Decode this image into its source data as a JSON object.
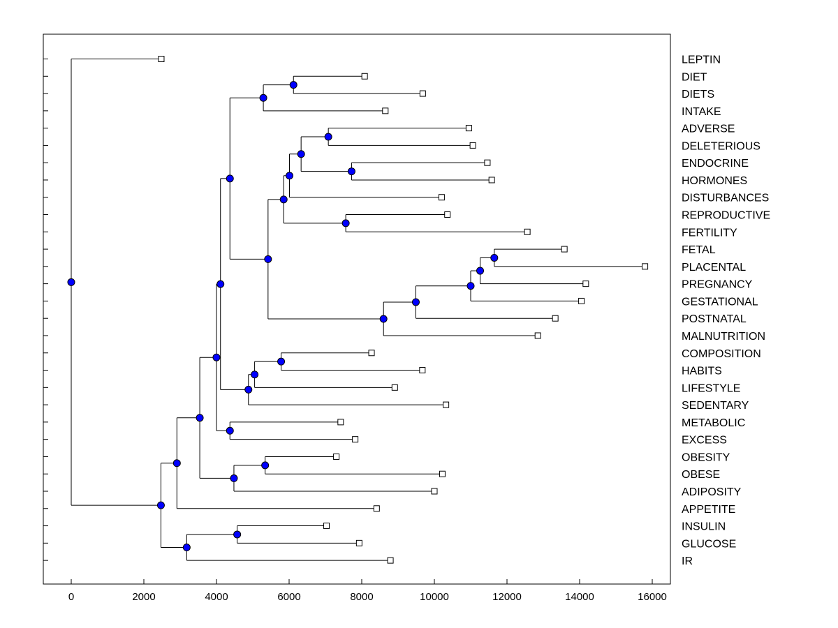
{
  "chart_data": {
    "type": "dendrogram",
    "orientation": "horizontal",
    "xlim": [
      -800,
      16500
    ],
    "x_ticks": [
      0,
      2000,
      4000,
      6000,
      8000,
      10000,
      12000,
      14000,
      16000
    ],
    "x_tick_labels": [
      "0",
      "2000",
      "4000",
      "6000",
      "8000",
      "10000",
      "12000",
      "14000",
      "16000"
    ],
    "leaves": [
      {
        "label": "LEPTIN",
        "x": 2480
      },
      {
        "label": "DIET",
        "x": 8080
      },
      {
        "label": "DIETS",
        "x": 9680
      },
      {
        "label": "INTAKE",
        "x": 8650
      },
      {
        "label": "ADVERSE",
        "x": 10950
      },
      {
        "label": "DELETERIOUS",
        "x": 11060
      },
      {
        "label": "ENDOCRINE",
        "x": 11460
      },
      {
        "label": "HORMONES",
        "x": 11580
      },
      {
        "label": "DISTURBANCES",
        "x": 10200
      },
      {
        "label": "REPRODUCTIVE",
        "x": 10360
      },
      {
        "label": "FERTILITY",
        "x": 12560
      },
      {
        "label": "FETAL",
        "x": 13580
      },
      {
        "label": "PLACENTAL",
        "x": 15800
      },
      {
        "label": "PREGNANCY",
        "x": 14170
      },
      {
        "label": "GESTATIONAL",
        "x": 14050
      },
      {
        "label": "POSTNATAL",
        "x": 13330
      },
      {
        "label": "MALNUTRITION",
        "x": 12850
      },
      {
        "label": "COMPOSITION",
        "x": 8270
      },
      {
        "label": "HABITS",
        "x": 9670
      },
      {
        "label": "LIFESTYLE",
        "x": 8910
      },
      {
        "label": "SEDENTARY",
        "x": 10320
      },
      {
        "label": "METABOLIC",
        "x": 7420
      },
      {
        "label": "EXCESS",
        "x": 7820
      },
      {
        "label": "OBESITY",
        "x": 7300
      },
      {
        "label": "OBESE",
        "x": 10220
      },
      {
        "label": "ADIPOSITY",
        "x": 10000
      },
      {
        "label": "APPETITE",
        "x": 8410
      },
      {
        "label": "INSULIN",
        "x": 7030
      },
      {
        "label": "GLUCOSE",
        "x": 7930
      },
      {
        "label": "IR",
        "x": 8790
      }
    ],
    "nodes": [
      {
        "id": "n_root",
        "x": 0,
        "children": [
          "L0",
          "n_B"
        ]
      },
      {
        "id": "n_B",
        "x": 2470,
        "children": [
          "n_C",
          "n_ig"
        ]
      },
      {
        "id": "n_ig",
        "x": 3180,
        "children": [
          "n_ig2",
          "L29"
        ]
      },
      {
        "id": "n_ig2",
        "x": 4570,
        "children": [
          "L27",
          "L28"
        ]
      },
      {
        "id": "n_C",
        "x": 2910,
        "children": [
          "n_D",
          "L26"
        ]
      },
      {
        "id": "n_D",
        "x": 3540,
        "children": [
          "n_E",
          "n_ob"
        ]
      },
      {
        "id": "n_ob",
        "x": 4480,
        "children": [
          "n_ob2",
          "L25"
        ]
      },
      {
        "id": "n_ob2",
        "x": 5340,
        "children": [
          "L23",
          "L24"
        ]
      },
      {
        "id": "n_E",
        "x": 4000,
        "children": [
          "n_F",
          "n_me"
        ]
      },
      {
        "id": "n_me",
        "x": 4370,
        "children": [
          "L21",
          "L22"
        ]
      },
      {
        "id": "n_F",
        "x": 4110,
        "children": [
          "n_G",
          "n_ls"
        ]
      },
      {
        "id": "n_ls",
        "x": 4880,
        "children": [
          "n_ls2",
          "L20"
        ]
      },
      {
        "id": "n_ls2",
        "x": 5050,
        "children": [
          "n_ls3",
          "L19"
        ]
      },
      {
        "id": "n_ls3",
        "x": 5780,
        "children": [
          "L17",
          "L18"
        ]
      },
      {
        "id": "n_G",
        "x": 4370,
        "children": [
          "n_di",
          "n_H"
        ]
      },
      {
        "id": "n_di",
        "x": 5290,
        "children": [
          "n_di2",
          "L3"
        ]
      },
      {
        "id": "n_di2",
        "x": 6120,
        "children": [
          "L1",
          "L2"
        ]
      },
      {
        "id": "n_H",
        "x": 5420,
        "children": [
          "n_I",
          "n_pr"
        ]
      },
      {
        "id": "n_I",
        "x": 5850,
        "children": [
          "n_J",
          "n_re"
        ]
      },
      {
        "id": "n_re",
        "x": 7560,
        "children": [
          "L9",
          "L10"
        ]
      },
      {
        "id": "n_J",
        "x": 6010,
        "children": [
          "n_K",
          "L8"
        ]
      },
      {
        "id": "n_K",
        "x": 6330,
        "children": [
          "n_ad",
          "n_en"
        ]
      },
      {
        "id": "n_ad",
        "x": 7080,
        "children": [
          "L4",
          "L5"
        ]
      },
      {
        "id": "n_en",
        "x": 7720,
        "children": [
          "L6",
          "L7"
        ]
      },
      {
        "id": "n_pr",
        "x": 8600,
        "children": [
          "n_pr2",
          "L16"
        ]
      },
      {
        "id": "n_pr2",
        "x": 9490,
        "children": [
          "n_pr3",
          "L15"
        ]
      },
      {
        "id": "n_pr3",
        "x": 11000,
        "children": [
          "n_pr4",
          "L14"
        ]
      },
      {
        "id": "n_pr4",
        "x": 11260,
        "children": [
          "n_pr5",
          "L13"
        ]
      },
      {
        "id": "n_pr5",
        "x": 11650,
        "children": [
          "L11",
          "L12"
        ]
      }
    ],
    "colors": {
      "node_fill": "#0000ff",
      "node_stroke": "#000000",
      "line": "#000000",
      "leaf_fill": "#ffffff",
      "background": "#ffffff"
    }
  }
}
